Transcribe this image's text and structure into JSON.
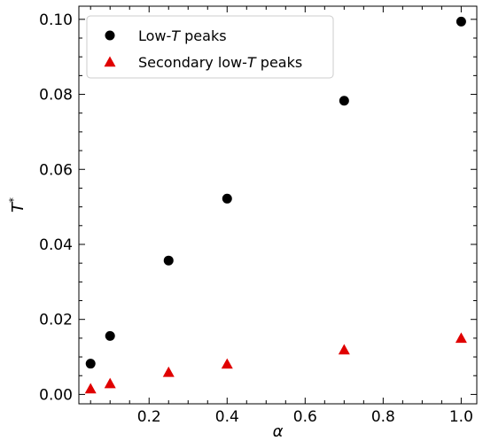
{
  "chart_data": {
    "type": "scatter",
    "xlabel": "α",
    "ylabel_main": "T",
    "ylabel_sup": "*",
    "xlim": [
      0.02,
      1.04
    ],
    "ylim": [
      -0.0025,
      0.1035
    ],
    "xticks": [
      0.2,
      0.4,
      0.6,
      0.8,
      1.0
    ],
    "xtick_labels": [
      "0.2",
      "0.4",
      "0.6",
      "0.8",
      "1.0"
    ],
    "yticks": [
      0.0,
      0.02,
      0.04,
      0.06,
      0.08,
      0.1
    ],
    "ytick_labels": [
      "0.00",
      "0.02",
      "0.04",
      "0.06",
      "0.08",
      "0.10"
    ],
    "grid": false,
    "legend_position": "top-left",
    "series": [
      {
        "key": "low-t-peaks",
        "legend_prefix": "Low-",
        "legend_italic": "T",
        "legend_suffix": " peaks",
        "marker": "circle",
        "color": "#000000",
        "x": [
          0.05,
          0.1,
          0.25,
          0.4,
          0.7,
          1.0
        ],
        "y": [
          0.0082,
          0.0156,
          0.0357,
          0.0522,
          0.0783,
          0.0994
        ]
      },
      {
        "key": "secondary-low-t-peaks",
        "legend_prefix": "Secondary low-",
        "legend_italic": "T",
        "legend_suffix": " peaks",
        "marker": "triangle",
        "color": "#e00000",
        "x": [
          0.05,
          0.1,
          0.25,
          0.4,
          0.7,
          1.0
        ],
        "y": [
          0.0015,
          0.0029,
          0.0059,
          0.0081,
          0.0119,
          0.015
        ]
      }
    ]
  }
}
